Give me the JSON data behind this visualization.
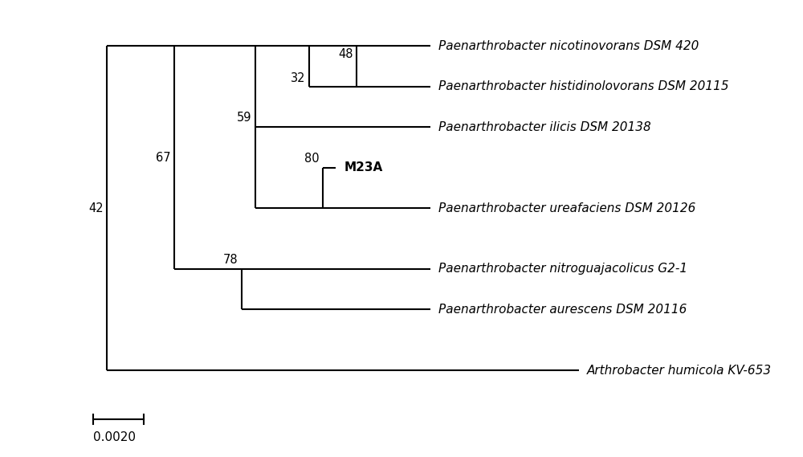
{
  "background_color": "#ffffff",
  "figsize": [
    10.0,
    5.69
  ],
  "dpi": 100,
  "scale_bar_label": "0.0020",
  "taxa": [
    "Paenarthrobacter nicotinovorans DSM 420",
    "Paenarthrobacter histidinolovorans DSM 20115",
    "Paenarthrobacter ilicis DSM 20138",
    "M23A",
    "Paenarthrobacter ureafaciens DSM 20126",
    "Paenarthrobacter nitroguajacolicus G2-1",
    "Paenarthrobacter aurescens DSM 20116",
    "Arthrobacter humicola KV-653"
  ],
  "taxa_italic": [
    true,
    true,
    true,
    false,
    true,
    true,
    true,
    true
  ],
  "taxa_bold": [
    false,
    false,
    false,
    true,
    false,
    false,
    false,
    false
  ],
  "y_positions": [
    8.0,
    7.0,
    6.0,
    5.0,
    4.0,
    2.5,
    1.5,
    0.0
  ],
  "line_color": "#000000",
  "line_width": 1.5,
  "font_size": 11,
  "bootstrap_font_size": 10.5
}
